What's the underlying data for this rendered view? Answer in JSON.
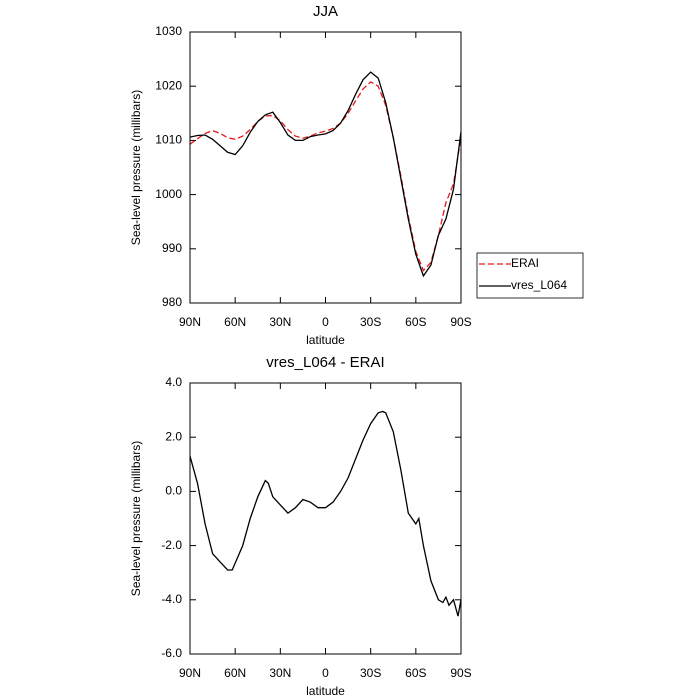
{
  "chart_data": [
    {
      "type": "line",
      "title": "JJA",
      "x_label": "latitude",
      "y_label": "Sea-level pressure (millibars)",
      "x": [
        90,
        85,
        80,
        75,
        70,
        65,
        60,
        55,
        50,
        45,
        40,
        35,
        30,
        25,
        20,
        15,
        10,
        5,
        0,
        -5,
        -10,
        -15,
        -20,
        -25,
        -30,
        -35,
        -40,
        -45,
        -50,
        -55,
        -60,
        -65,
        -70,
        -75,
        -80,
        -85,
        -90
      ],
      "series": [
        {
          "name": "ERAI",
          "color": "#e41a1c",
          "dashed": true,
          "values": [
            1009.3,
            1010.3,
            1011.3,
            1011.8,
            1011.3,
            1010.5,
            1010.2,
            1010.8,
            1012,
            1013.5,
            1014.5,
            1014.6,
            1013.6,
            1012,
            1010.8,
            1010.4,
            1010.8,
            1011.4,
            1011.7,
            1012.2,
            1013.2,
            1015,
            1017.3,
            1019.5,
            1020.8,
            1020,
            1016.5,
            1010.5,
            1003.5,
            996,
            989.5,
            986,
            987.5,
            992.5,
            998.5,
            1002,
            1010.5
          ]
        },
        {
          "name": "vres_L064",
          "color": "#000000",
          "dashed": false,
          "values": [
            1010.6,
            1010.9,
            1011,
            1010.2,
            1009,
            1007.8,
            1007.4,
            1009,
            1011.5,
            1013.5,
            1014.7,
            1015.2,
            1013.3,
            1011,
            1010,
            1010,
            1010.7,
            1011,
            1011.2,
            1011.8,
            1013.2,
            1015.5,
            1018.5,
            1021.2,
            1022.6,
            1021.5,
            1017,
            1010.5,
            1003,
            995.5,
            989,
            985,
            987,
            992.5,
            995.5,
            1001,
            1011.6
          ]
        }
      ],
      "xlim": [
        90,
        -90
      ],
      "xticks": [
        {
          "value": 90,
          "label": "90N"
        },
        {
          "value": 60,
          "label": "60N"
        },
        {
          "value": 30,
          "label": "30N"
        },
        0,
        {
          "value": -30,
          "label": "30S"
        },
        {
          "value": -60,
          "label": "60S"
        },
        {
          "value": -90,
          "label": "90S"
        }
      ],
      "ylim": [
        980,
        1030
      ],
      "yticks": [
        980,
        990,
        1000,
        1010,
        1020,
        1030
      ],
      "legend": "right"
    },
    {
      "type": "line",
      "title": "vres_L064 - ERAI",
      "x_label": "latitude",
      "y_label": "Sea-level pressure (millibars)",
      "x": [
        90,
        85,
        80,
        75,
        70,
        65,
        62,
        55,
        50,
        45,
        40,
        38,
        35,
        30,
        25,
        20,
        15,
        10,
        5,
        0,
        -5,
        -10,
        -15,
        -20,
        -25,
        -30,
        -35,
        -38,
        -40,
        -45,
        -50,
        -55,
        -60,
        -62,
        -65,
        -70,
        -75,
        -78,
        -80,
        -82,
        -85,
        -88,
        -90
      ],
      "series": [
        {
          "color": "#000000",
          "dashed": false,
          "values": [
            1.3,
            0.3,
            -1.2,
            -2.3,
            -2.6,
            -2.9,
            -2.9,
            -2.0,
            -1.0,
            -0.2,
            0.4,
            0.3,
            -0.2,
            -0.5,
            -0.8,
            -0.6,
            -0.3,
            -0.4,
            -0.6,
            -0.6,
            -0.4,
            0.0,
            0.5,
            1.2,
            1.9,
            2.5,
            2.9,
            2.95,
            2.9,
            2.2,
            0.8,
            -0.8,
            -1.2,
            -1.0,
            -2.0,
            -3.3,
            -4.0,
            -4.1,
            -3.9,
            -4.2,
            -4.0,
            -4.6,
            -4.0
          ]
        }
      ],
      "xlim": [
        90,
        -90
      ],
      "xticks": [
        {
          "value": 90,
          "label": "90N"
        },
        {
          "value": 60,
          "label": "60N"
        },
        {
          "value": 30,
          "label": "30N"
        },
        0,
        {
          "value": -30,
          "label": "30S"
        },
        {
          "value": -60,
          "label": "60S"
        },
        {
          "value": -90,
          "label": "90S"
        }
      ],
      "ylim": [
        -6,
        4
      ],
      "yticks": [
        {
          "value": -6,
          "label": "-6.0"
        },
        {
          "value": -4,
          "label": "-4.0"
        },
        {
          "value": -2,
          "label": "-2.0"
        },
        {
          "value": 0,
          "label": "0.0"
        },
        {
          "value": 2,
          "label": "2.0"
        },
        {
          "value": 4,
          "label": "4.0"
        }
      ]
    }
  ]
}
